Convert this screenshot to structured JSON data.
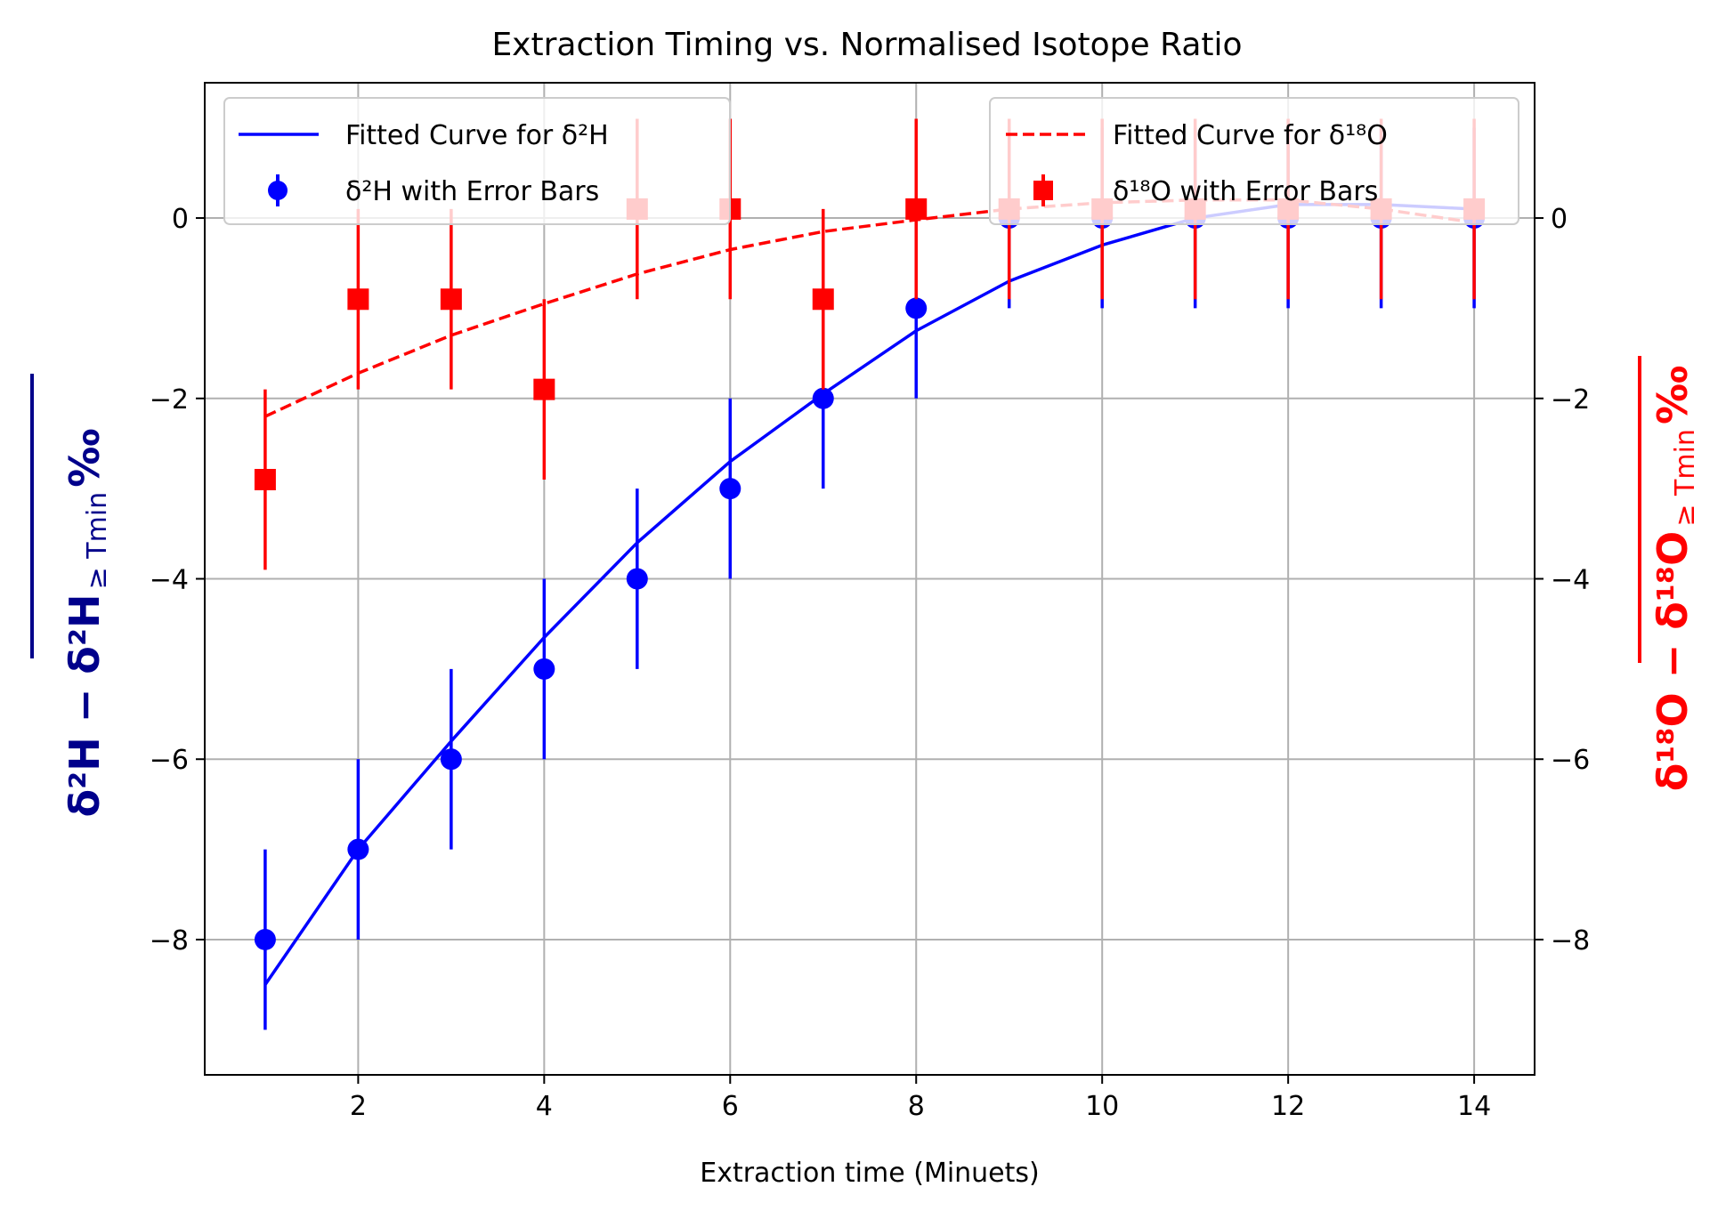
{
  "chart_data": {
    "type": "scatter",
    "title": "Extraction Timing vs. Normalised Isotope Ratio",
    "xlabel": "Extraction time (Minuets)",
    "ylabel_left": {
      "main": "δ²H − δ²H",
      "sub": "≥ Tmin",
      "unit": "‰",
      "color": "#00008b"
    },
    "ylabel_right": {
      "main": "δ¹⁸O − δ¹⁸O",
      "sub": "≥ Tmin",
      "unit": "‰",
      "color": "#ff0000"
    },
    "xlim": [
      0.35,
      14.65
    ],
    "ylim": [
      -9.5,
      1.5
    ],
    "xticks": [
      2,
      4,
      6,
      8,
      10,
      12,
      14
    ],
    "xtick_labels": [
      "2",
      "4",
      "6",
      "8",
      "10",
      "12",
      "14"
    ],
    "yticks": [
      -8,
      -6,
      -4,
      -2,
      0
    ],
    "ytick_labels": [
      "−8",
      "−6",
      "−4",
      "−2",
      "0"
    ],
    "grid": true,
    "series": [
      {
        "name": "δ²H with Error Bars",
        "kind": "errorbar",
        "marker": "circle",
        "color": "#0000ff",
        "x": [
          1,
          2,
          3,
          4,
          5,
          6,
          7,
          8,
          9,
          10,
          11,
          12,
          13,
          14
        ],
        "y": [
          -8,
          -7,
          -6,
          -5,
          -4,
          -3,
          -2,
          -1,
          0,
          0,
          0,
          0,
          0,
          0
        ],
        "yerr": [
          1,
          1,
          1,
          1,
          1,
          1,
          1,
          1,
          1,
          1,
          1,
          1,
          1,
          1
        ]
      },
      {
        "name": "δ¹⁸O with Error Bars",
        "kind": "errorbar",
        "marker": "square",
        "color": "#ff0000",
        "x": [
          1,
          2,
          3,
          4,
          5,
          6,
          7,
          8,
          9,
          10,
          11,
          12,
          13,
          14
        ],
        "y": [
          -2.9,
          -0.9,
          -0.9,
          -1.9,
          0.1,
          0.1,
          -0.9,
          0.1,
          0.1,
          0.1,
          0.1,
          0.1,
          0.1,
          0.1
        ],
        "yerr": [
          1,
          1,
          1,
          1,
          1,
          1,
          1,
          1,
          1,
          1,
          1,
          1,
          1,
          1
        ]
      },
      {
        "name": "Fitted Curve for δ²H",
        "kind": "line",
        "style": "solid",
        "color": "#0000ff",
        "x": [
          1,
          2,
          3,
          4,
          5,
          6,
          7,
          8,
          9,
          10,
          11,
          12,
          13,
          14
        ],
        "y": [
          -8.5,
          -7.0,
          -5.8,
          -4.65,
          -3.6,
          -2.7,
          -1.95,
          -1.25,
          -0.7,
          -0.3,
          0.0,
          0.15,
          0.15,
          0.1
        ]
      },
      {
        "name": "Fitted Curve for δ¹⁸O",
        "kind": "line",
        "style": "dashed",
        "color": "#ff0000",
        "x": [
          1,
          2,
          3,
          4,
          5,
          6,
          7,
          8,
          9,
          10,
          11,
          12,
          13,
          14
        ],
        "y": [
          -2.2,
          -1.72,
          -1.3,
          -0.95,
          -0.62,
          -0.35,
          -0.15,
          -0.02,
          0.1,
          0.17,
          0.2,
          0.2,
          0.1,
          -0.05
        ]
      }
    ],
    "legend_left": {
      "placement": "upper-left",
      "entries": [
        {
          "label": "Fitted Curve for δ²H",
          "symbol": "solid-line",
          "color": "#0000ff"
        },
        {
          "label": "δ²H with Error Bars",
          "symbol": "circle-errorbar",
          "color": "#0000ff"
        }
      ]
    },
    "legend_right": {
      "placement": "upper-right",
      "entries": [
        {
          "label": "Fitted Curve for δ¹⁸O",
          "symbol": "dashed-line",
          "color": "#ff0000"
        },
        {
          "label": "δ¹⁸O with Error Bars",
          "symbol": "square-errorbar",
          "color": "#ff0000"
        }
      ]
    }
  }
}
